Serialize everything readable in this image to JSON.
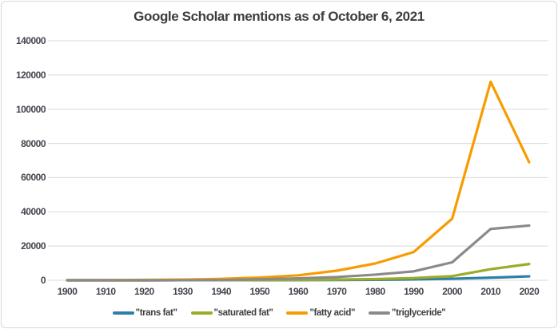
{
  "chart_data": {
    "type": "line",
    "title": "Google Scholar mentions as of October 6, 2021",
    "xlabel": "",
    "ylabel": "",
    "categories": [
      1900,
      1910,
      1920,
      1930,
      1940,
      1950,
      1960,
      1970,
      1980,
      1990,
      2000,
      2010,
      2020
    ],
    "series": [
      {
        "name": "\"trans fat\"",
        "color": "#2e7fa7",
        "values": [
          10,
          10,
          15,
          20,
          30,
          50,
          80,
          150,
          300,
          500,
          900,
          1500,
          2300
        ]
      },
      {
        "name": "\"saturated fat\"",
        "color": "#9cab28",
        "values": [
          5,
          10,
          15,
          25,
          50,
          100,
          200,
          400,
          700,
          1300,
          2400,
          6500,
          9500
        ]
      },
      {
        "name": "\"fatty acid\"",
        "color": "#f79c00",
        "values": [
          100,
          150,
          250,
          400,
          800,
          1600,
          2900,
          5600,
          9800,
          16500,
          36000,
          116000,
          69000
        ]
      },
      {
        "name": "\"triglyceride\"",
        "color": "#8a8a8a",
        "values": [
          5,
          10,
          15,
          30,
          100,
          600,
          1100,
          1900,
          3300,
          5200,
          10500,
          30000,
          32000
        ]
      }
    ],
    "ylim": [
      0,
      140000
    ],
    "y_ticks": [
      0,
      20000,
      40000,
      60000,
      80000,
      100000,
      120000,
      140000
    ],
    "grid": "horizontal",
    "gridline_color": "#d9d9d9",
    "legend_position": "bottom",
    "text_color": "#3d3d3d"
  }
}
